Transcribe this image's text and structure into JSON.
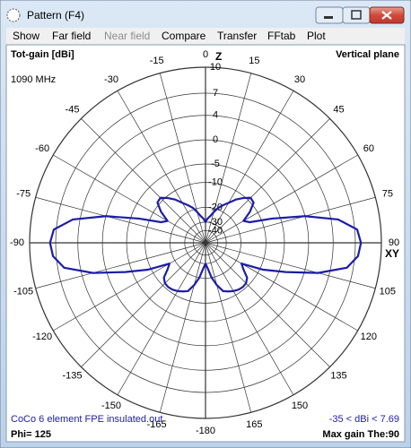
{
  "window": {
    "title": "Pattern  (F4)",
    "menu": [
      "Show",
      "Far field",
      "Near field",
      "Compare",
      "Transfer",
      "FFtab",
      "Plot"
    ]
  },
  "chart_data": {
    "type": "polar",
    "title": "Tot-gain [dBi]",
    "subtitle": "Vertical plane",
    "frequency": "1090 MHz",
    "z_label": "Z",
    "xy_label": "XY",
    "range_label": "-35 < dBi < 7.69",
    "phi_label": "Phi= 125",
    "max_gain_label": "Max gain The:90",
    "x": [
      -180,
      -175,
      -170,
      -165,
      -160,
      -155,
      -150,
      -145,
      -140,
      -135,
      -130,
      -125,
      -120,
      -115,
      -110,
      -105,
      -100,
      -95,
      -90,
      -85,
      -80,
      -75,
      -70,
      -65,
      -60,
      -55,
      -50,
      -45,
      -40,
      -35,
      -30,
      -25,
      -20,
      -15,
      -10,
      -5,
      0,
      5,
      10,
      15,
      20,
      25,
      30,
      35,
      40,
      45,
      50,
      55,
      60,
      65,
      70,
      75,
      80,
      85,
      90,
      95,
      100,
      105,
      110,
      115,
      120,
      125,
      130,
      135,
      140,
      145,
      150,
      155,
      160,
      165,
      170,
      175,
      180
    ],
    "series": [
      {
        "name": "CoCo 6 element FPE insulated.out",
        "color": "#1c1ca8",
        "values": [
          -30,
          -26,
          -20,
          -16,
          -13,
          -12.2,
          -11.5,
          -11,
          -10.8,
          -11,
          -12,
          -15,
          -17,
          -9,
          -3.5,
          2.3,
          6.2,
          7.4,
          7.69,
          7.3,
          5,
          0,
          -7,
          -14,
          -16,
          -12,
          -9.3,
          -9,
          -10.6,
          -12.5,
          -15,
          -17,
          -19,
          -22,
          -25,
          -27,
          -30,
          -27,
          -25,
          -22,
          -19,
          -17,
          -15,
          -12.5,
          -10.6,
          -9,
          -9.3,
          -12,
          -16,
          -14,
          -7,
          0,
          5,
          7.3,
          7.69,
          7.4,
          6.2,
          2.3,
          -3.5,
          -9,
          -17,
          -15,
          -12,
          -11,
          -10.8,
          -11,
          -11.5,
          -12.2,
          -13,
          -16,
          -20,
          -26,
          -30
        ]
      }
    ],
    "rticks": [
      10,
      7,
      4,
      0,
      -5,
      -10,
      -20,
      -30,
      -40
    ],
    "xticks": [
      -180,
      -165,
      -150,
      -135,
      -120,
      -105,
      -90,
      -75,
      -60,
      -45,
      -30,
      -15,
      0,
      15,
      30,
      45,
      60,
      75,
      90,
      105,
      120,
      135,
      150,
      165
    ],
    "grid": true
  }
}
